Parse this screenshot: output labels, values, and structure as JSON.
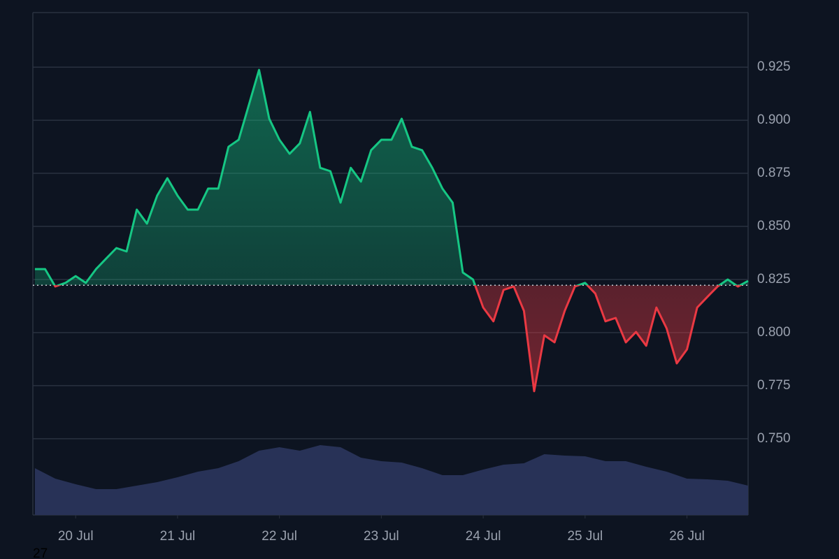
{
  "chart_data": {
    "type": "baseline-area",
    "x": [
      19.6,
      19.7,
      19.8,
      19.9,
      20.0,
      20.1,
      20.2,
      20.3,
      20.4,
      20.5,
      20.6,
      20.7,
      20.8,
      20.9,
      21.0,
      21.1,
      21.2,
      21.3,
      21.4,
      21.5,
      21.6,
      21.7,
      21.8,
      21.9,
      22.0,
      22.1,
      22.2,
      22.3,
      22.4,
      22.5,
      22.6,
      22.7,
      22.8,
      22.9,
      23.0,
      23.1,
      23.2,
      23.3,
      23.4,
      23.5,
      23.6,
      23.7,
      23.8,
      23.9,
      24.0,
      24.1,
      24.2,
      24.3,
      24.4,
      24.5,
      24.6,
      24.7,
      24.8,
      24.9,
      25.0,
      25.1,
      25.2,
      25.3,
      25.4,
      25.5,
      25.6,
      25.7,
      25.8,
      25.9,
      26.0,
      26.1,
      26.2,
      26.3,
      26.4,
      26.5,
      26.6
    ],
    "values": [
      0.8299,
      0.8299,
      0.8217,
      0.8234,
      0.8266,
      0.8234,
      0.8299,
      0.8349,
      0.8398,
      0.8382,
      0.8579,
      0.8513,
      0.8645,
      0.8727,
      0.8645,
      0.8579,
      0.8579,
      0.8678,
      0.8678,
      0.8875,
      0.8908,
      0.9072,
      0.9237,
      0.9007,
      0.8908,
      0.8842,
      0.8891,
      0.9039,
      0.8776,
      0.876,
      0.8612,
      0.8776,
      0.8711,
      0.8859,
      0.8908,
      0.8908,
      0.9007,
      0.8875,
      0.8859,
      0.8776,
      0.8678,
      0.8612,
      0.8283,
      0.825,
      0.8118,
      0.8053,
      0.8201,
      0.8217,
      0.8102,
      0.7724,
      0.7987,
      0.7954,
      0.8102,
      0.8217,
      0.8234,
      0.8184,
      0.8053,
      0.8069,
      0.7954,
      0.8003,
      0.7938,
      0.8118,
      0.802,
      0.7855,
      0.7921,
      0.8118,
      0.8168,
      0.8217,
      0.825,
      0.8217,
      0.8243
    ],
    "baseline": 0.8223,
    "up_color": "#16c784",
    "down_color": "#ea3943",
    "volume": {
      "axis": "y2",
      "color": "#283257",
      "x": [
        19.6,
        19.8,
        20.0,
        20.2,
        20.4,
        20.6,
        20.8,
        21.0,
        21.2,
        21.4,
        21.6,
        21.8,
        22.0,
        22.2,
        22.4,
        22.6,
        22.8,
        23.0,
        23.2,
        23.4,
        23.6,
        23.8,
        24.0,
        24.2,
        24.4,
        24.6,
        24.8,
        25.0,
        25.2,
        25.4,
        25.6,
        25.8,
        26.0,
        26.2,
        26.4,
        26.6
      ],
      "values": [
        67,
        52,
        44,
        37,
        37,
        42,
        47,
        54,
        62,
        67,
        77,
        92,
        97,
        92,
        100,
        97,
        82,
        77,
        75,
        67,
        57,
        57,
        65,
        72,
        74,
        87,
        85,
        84,
        77,
        77,
        69,
        62,
        52,
        51,
        49,
        42
      ]
    },
    "xlim": [
      19.58,
      26.6
    ],
    "xticks": [
      {
        "value": 20,
        "label": "20 Jul"
      },
      {
        "value": 21,
        "label": "21 Jul"
      },
      {
        "value": 22,
        "label": "22 Jul"
      },
      {
        "value": 23,
        "label": "23 Jul"
      },
      {
        "value": 24,
        "label": "24 Jul"
      },
      {
        "value": 25,
        "label": "25 Jul"
      },
      {
        "value": 26,
        "label": "26 Jul"
      }
    ],
    "ylim": [
      0.7141,
      0.9507
    ],
    "yticks": [
      {
        "value": 0.75,
        "label": "0.750"
      },
      0.775,
      {
        "value": 0.8,
        "label": "0.800"
      },
      0.825,
      {
        "value": 0.85,
        "label": "0.850"
      },
      0.875,
      {
        "value": 0.9,
        "label": "0.900"
      },
      0.925
    ],
    "y2lim": [
      0,
      719
    ],
    "grid": true,
    "annotation": "27"
  }
}
